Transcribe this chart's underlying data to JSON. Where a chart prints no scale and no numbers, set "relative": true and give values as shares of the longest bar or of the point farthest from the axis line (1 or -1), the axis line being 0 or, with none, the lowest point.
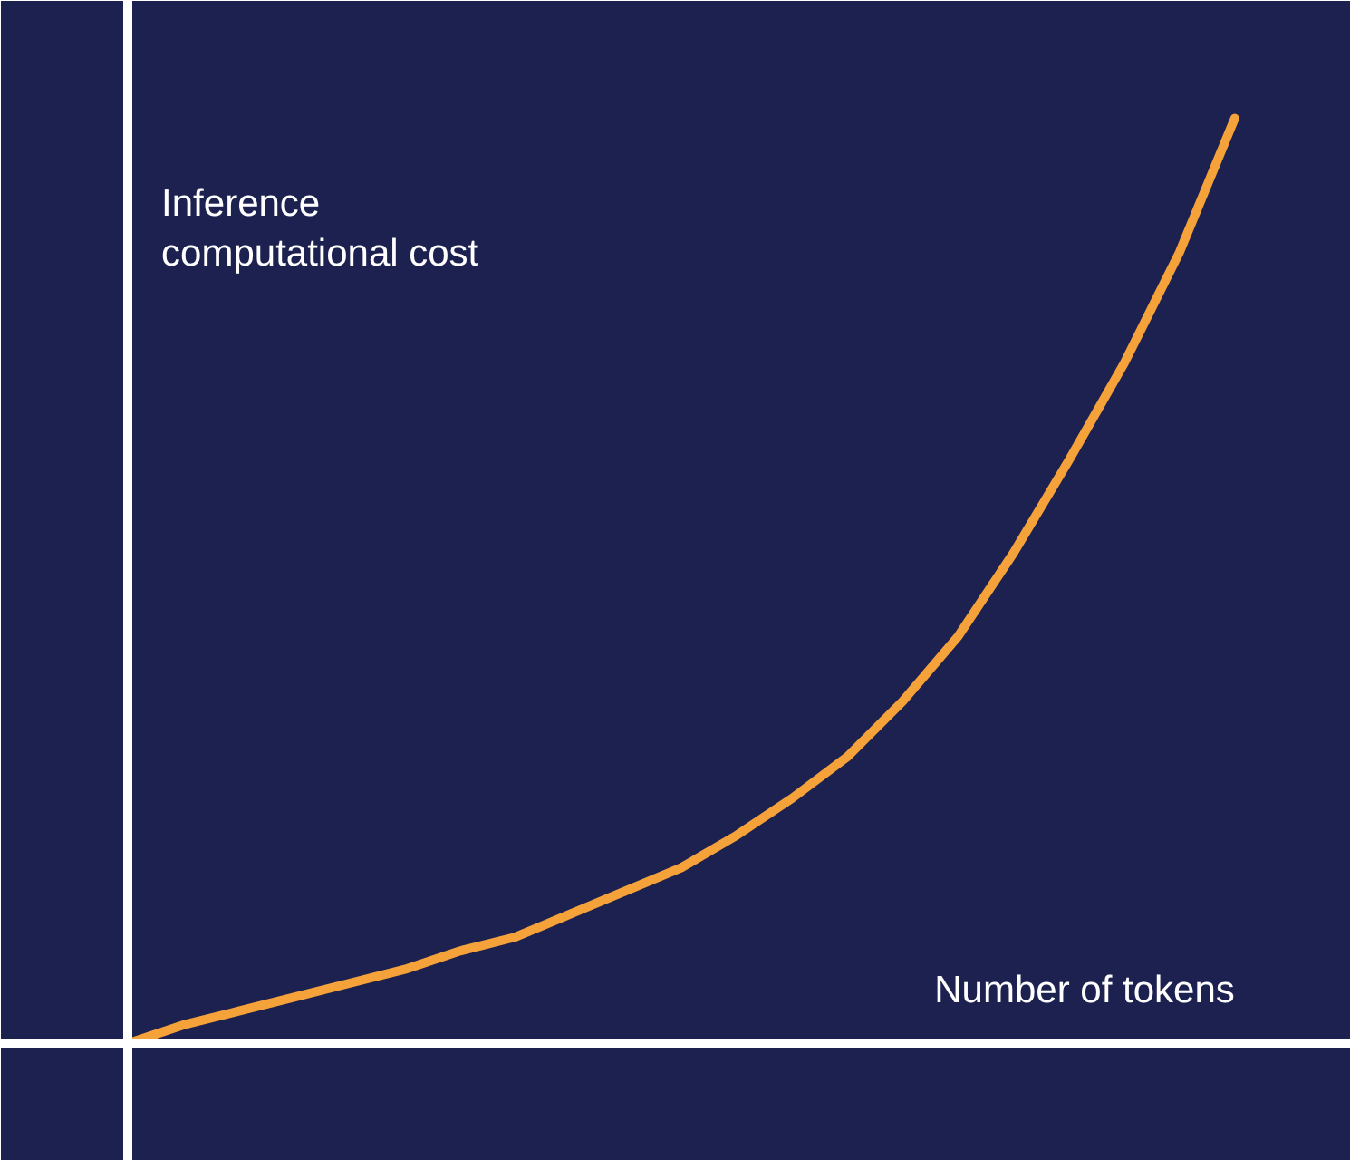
{
  "chart_data": {
    "type": "line",
    "relative": true,
    "xlabel": "Number of tokens",
    "ylabel": "Inference computational cost",
    "categories": [
      null,
      null,
      null,
      null,
      null,
      null,
      null,
      null,
      null,
      null,
      null,
      null,
      null,
      null,
      null,
      null,
      null,
      null,
      null,
      null,
      null
    ],
    "series": [
      {
        "color": "#f5a23a",
        "values": [
          0.0,
          0.02,
          0.035,
          0.05,
          0.065,
          0.08,
          0.1,
          0.115,
          0.14,
          0.165,
          0.19,
          0.225,
          0.265,
          0.31,
          0.37,
          0.44,
          0.53,
          0.63,
          0.735,
          0.855,
          1.0
        ]
      }
    ],
    "marker": "none",
    "line_style": "solid"
  }
}
